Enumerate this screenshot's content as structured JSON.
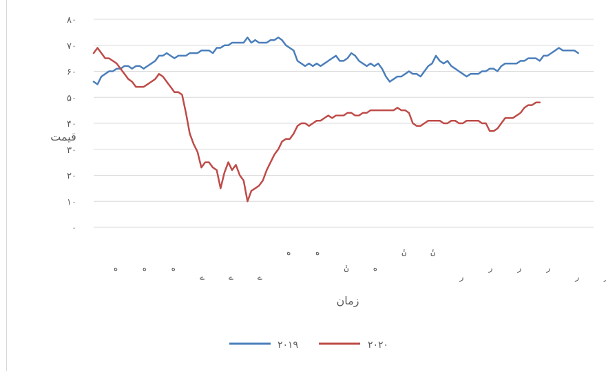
{
  "chart_data": {
    "type": "line",
    "xlabel": "زمان",
    "ylabel": "قیمت",
    "ylim": [
      0,
      80
    ],
    "y_ticks": [
      {
        "value": 0,
        "label": "۰"
      },
      {
        "value": 10,
        "label": "۱۰"
      },
      {
        "value": 20,
        "label": "۲۰"
      },
      {
        "value": 30,
        "label": "۳۰"
      },
      {
        "value": 40,
        "label": "۴۰"
      },
      {
        "value": 50,
        "label": "۵۰"
      },
      {
        "value": 60,
        "label": "۶۰"
      },
      {
        "value": 70,
        "label": "۷۰"
      },
      {
        "value": 80,
        "label": "۸۰"
      }
    ],
    "x_range": [
      0,
      260
    ],
    "x_tick_labels": [
      {
        "x": 5,
        "label": "ه",
        "row": 1
      },
      {
        "x": 20,
        "label": "ه",
        "row": 1
      },
      {
        "x": 35,
        "label": "ه",
        "row": 1
      },
      {
        "x": 50,
        "label": "ے",
        "row": 2
      },
      {
        "x": 65,
        "label": "ے",
        "row": 2
      },
      {
        "x": 80,
        "label": "ے",
        "row": 2
      },
      {
        "x": 95,
        "label": "ه",
        "row": 0
      },
      {
        "x": 110,
        "label": "ه",
        "row": 0
      },
      {
        "x": 125,
        "label": "ݩ",
        "row": 1
      },
      {
        "x": 140,
        "label": "ه",
        "row": 1
      },
      {
        "x": 155,
        "label": "ݩ",
        "row": 0
      },
      {
        "x": 170,
        "label": "ݩ",
        "row": 0
      },
      {
        "x": 185,
        "label": "ر",
        "row": 2
      },
      {
        "x": 200,
        "label": "ر",
        "row": 1
      },
      {
        "x": 215,
        "label": "ر",
        "row": 1
      },
      {
        "x": 230,
        "label": "ر",
        "row": 1
      },
      {
        "x": 245,
        "label": "ر",
        "row": 2
      },
      {
        "x": 260,
        "label": "ر",
        "row": 2
      }
    ],
    "grid": true,
    "legend_position": "bottom",
    "series": [
      {
        "name": "۲۰۱۹",
        "color": "#4a7ebb",
        "points": [
          [
            0,
            56
          ],
          [
            2,
            55
          ],
          [
            4,
            58
          ],
          [
            6,
            59
          ],
          [
            8,
            60
          ],
          [
            10,
            60
          ],
          [
            12,
            61
          ],
          [
            14,
            61
          ],
          [
            16,
            62
          ],
          [
            18,
            62
          ],
          [
            20,
            61
          ],
          [
            22,
            62
          ],
          [
            24,
            62
          ],
          [
            26,
            61
          ],
          [
            28,
            62
          ],
          [
            30,
            63
          ],
          [
            32,
            64
          ],
          [
            34,
            66
          ],
          [
            36,
            66
          ],
          [
            38,
            67
          ],
          [
            40,
            66
          ],
          [
            42,
            65
          ],
          [
            44,
            66
          ],
          [
            46,
            66
          ],
          [
            48,
            66
          ],
          [
            50,
            67
          ],
          [
            52,
            67
          ],
          [
            54,
            67
          ],
          [
            56,
            68
          ],
          [
            58,
            68
          ],
          [
            60,
            68
          ],
          [
            62,
            67
          ],
          [
            64,
            69
          ],
          [
            66,
            69
          ],
          [
            68,
            70
          ],
          [
            70,
            70
          ],
          [
            72,
            71
          ],
          [
            74,
            71
          ],
          [
            76,
            71
          ],
          [
            78,
            71
          ],
          [
            80,
            73
          ],
          [
            82,
            71
          ],
          [
            84,
            72
          ],
          [
            86,
            71
          ],
          [
            88,
            71
          ],
          [
            90,
            71
          ],
          [
            92,
            72
          ],
          [
            94,
            72
          ],
          [
            96,
            73
          ],
          [
            98,
            72
          ],
          [
            100,
            70
          ],
          [
            102,
            69
          ],
          [
            104,
            68
          ],
          [
            106,
            64
          ],
          [
            108,
            63
          ],
          [
            110,
            62
          ],
          [
            112,
            63
          ],
          [
            114,
            62
          ],
          [
            116,
            63
          ],
          [
            118,
            62
          ],
          [
            120,
            63
          ],
          [
            122,
            64
          ],
          [
            124,
            65
          ],
          [
            126,
            66
          ],
          [
            128,
            64
          ],
          [
            130,
            64
          ],
          [
            132,
            65
          ],
          [
            134,
            67
          ],
          [
            136,
            66
          ],
          [
            138,
            64
          ],
          [
            140,
            63
          ],
          [
            142,
            62
          ],
          [
            144,
            63
          ],
          [
            146,
            62
          ],
          [
            148,
            63
          ],
          [
            150,
            61
          ],
          [
            152,
            58
          ],
          [
            154,
            56
          ],
          [
            156,
            57
          ],
          [
            158,
            58
          ],
          [
            160,
            58
          ],
          [
            162,
            59
          ],
          [
            164,
            60
          ],
          [
            166,
            59
          ],
          [
            168,
            59
          ],
          [
            170,
            58
          ],
          [
            172,
            60
          ],
          [
            174,
            62
          ],
          [
            176,
            63
          ],
          [
            178,
            66
          ],
          [
            180,
            64
          ],
          [
            182,
            63
          ],
          [
            184,
            64
          ],
          [
            186,
            62
          ],
          [
            188,
            61
          ],
          [
            190,
            60
          ],
          [
            192,
            59
          ],
          [
            194,
            58
          ],
          [
            196,
            59
          ],
          [
            198,
            59
          ],
          [
            200,
            59
          ],
          [
            202,
            60
          ],
          [
            204,
            60
          ],
          [
            206,
            61
          ],
          [
            208,
            61
          ],
          [
            210,
            60
          ],
          [
            212,
            62
          ],
          [
            214,
            63
          ],
          [
            216,
            63
          ],
          [
            218,
            63
          ],
          [
            220,
            63
          ],
          [
            222,
            64
          ],
          [
            224,
            64
          ],
          [
            226,
            65
          ],
          [
            228,
            65
          ],
          [
            230,
            65
          ],
          [
            232,
            64
          ],
          [
            234,
            66
          ],
          [
            236,
            66
          ],
          [
            238,
            67
          ],
          [
            240,
            68
          ],
          [
            242,
            69
          ],
          [
            244,
            68
          ],
          [
            246,
            68
          ],
          [
            248,
            68
          ],
          [
            250,
            68
          ],
          [
            252,
            67
          ]
        ]
      },
      {
        "name": "۲۰۲۰",
        "color": "#be4b48",
        "points": [
          [
            0,
            67
          ],
          [
            2,
            69
          ],
          [
            4,
            67
          ],
          [
            6,
            65
          ],
          [
            8,
            65
          ],
          [
            10,
            64
          ],
          [
            12,
            63
          ],
          [
            14,
            61
          ],
          [
            16,
            59
          ],
          [
            18,
            57
          ],
          [
            20,
            56
          ],
          [
            22,
            54
          ],
          [
            24,
            54
          ],
          [
            26,
            54
          ],
          [
            28,
            55
          ],
          [
            30,
            56
          ],
          [
            32,
            57
          ],
          [
            34,
            59
          ],
          [
            36,
            58
          ],
          [
            38,
            56
          ],
          [
            40,
            54
          ],
          [
            42,
            52
          ],
          [
            44,
            52
          ],
          [
            46,
            51
          ],
          [
            48,
            44
          ],
          [
            50,
            36
          ],
          [
            52,
            32
          ],
          [
            54,
            29
          ],
          [
            56,
            23
          ],
          [
            58,
            25
          ],
          [
            60,
            25
          ],
          [
            62,
            23
          ],
          [
            64,
            22
          ],
          [
            66,
            15
          ],
          [
            68,
            21
          ],
          [
            70,
            25
          ],
          [
            72,
            22
          ],
          [
            74,
            24
          ],
          [
            76,
            20
          ],
          [
            78,
            18
          ],
          [
            80,
            10
          ],
          [
            82,
            14
          ],
          [
            84,
            15
          ],
          [
            86,
            16
          ],
          [
            88,
            18
          ],
          [
            90,
            22
          ],
          [
            92,
            25
          ],
          [
            94,
            28
          ],
          [
            96,
            30
          ],
          [
            98,
            33
          ],
          [
            100,
            34
          ],
          [
            102,
            34
          ],
          [
            104,
            36
          ],
          [
            106,
            39
          ],
          [
            108,
            40
          ],
          [
            110,
            40
          ],
          [
            112,
            39
          ],
          [
            114,
            40
          ],
          [
            116,
            41
          ],
          [
            118,
            41
          ],
          [
            120,
            42
          ],
          [
            122,
            43
          ],
          [
            124,
            42
          ],
          [
            126,
            43
          ],
          [
            128,
            43
          ],
          [
            130,
            43
          ],
          [
            132,
            44
          ],
          [
            134,
            44
          ],
          [
            136,
            43
          ],
          [
            138,
            43
          ],
          [
            140,
            44
          ],
          [
            142,
            44
          ],
          [
            144,
            45
          ],
          [
            146,
            45
          ],
          [
            148,
            45
          ],
          [
            150,
            45
          ],
          [
            152,
            45
          ],
          [
            154,
            45
          ],
          [
            156,
            45
          ],
          [
            158,
            46
          ],
          [
            160,
            45
          ],
          [
            162,
            45
          ],
          [
            164,
            44
          ],
          [
            166,
            40
          ],
          [
            168,
            39
          ],
          [
            170,
            39
          ],
          [
            172,
            40
          ],
          [
            174,
            41
          ],
          [
            176,
            41
          ],
          [
            178,
            41
          ],
          [
            180,
            41
          ],
          [
            182,
            40
          ],
          [
            184,
            40
          ],
          [
            186,
            41
          ],
          [
            188,
            41
          ],
          [
            190,
            40
          ],
          [
            192,
            40
          ],
          [
            194,
            41
          ],
          [
            196,
            41
          ],
          [
            198,
            41
          ],
          [
            200,
            41
          ],
          [
            202,
            40
          ],
          [
            204,
            40
          ],
          [
            206,
            37
          ],
          [
            208,
            37
          ],
          [
            210,
            38
          ],
          [
            212,
            40
          ],
          [
            214,
            42
          ],
          [
            216,
            42
          ],
          [
            218,
            42
          ],
          [
            220,
            43
          ],
          [
            222,
            44
          ],
          [
            224,
            46
          ],
          [
            226,
            47
          ],
          [
            228,
            47
          ],
          [
            230,
            48
          ],
          [
            232,
            48
          ]
        ]
      }
    ]
  }
}
